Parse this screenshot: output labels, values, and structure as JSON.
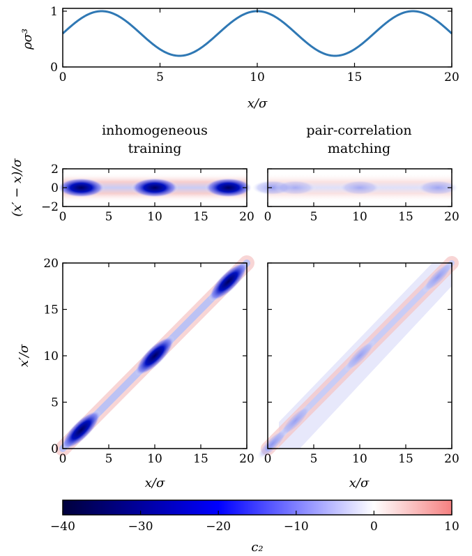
{
  "chart_data": [
    {
      "type": "line",
      "panel": "density",
      "series": [
        {
          "name": "",
          "color": "#2f78b4",
          "function": "0.6 + 0.4*sin(2*pi*x/8)"
        }
      ],
      "x": [
        0,
        2,
        4,
        6,
        8,
        10,
        12,
        14,
        16,
        18,
        20
      ],
      "y": [
        0.6,
        1.0,
        0.6,
        0.2,
        0.6,
        1.0,
        0.6,
        0.2,
        0.6,
        1.0,
        0.6
      ],
      "xlim": [
        0,
        20
      ],
      "ylim": [
        0,
        1.05
      ],
      "xticks": [
        "0",
        "5",
        "10",
        "15",
        "20"
      ],
      "yticks": [
        "0",
        "1"
      ],
      "xlabel": "x/σ",
      "ylabel": "ρσ³"
    },
    {
      "type": "heatmap",
      "panel": "strip-left",
      "title_line1": "inhomogeneous",
      "title_line2": "training",
      "xlim": [
        0,
        20
      ],
      "ylim": [
        -2,
        2
      ],
      "xticks": [
        "0",
        "5",
        "10",
        "15",
        "20"
      ],
      "yticks": [
        "2",
        "0",
        "−2"
      ],
      "ylabel": "(x′ − x)/σ",
      "blobs": [
        {
          "x": 2,
          "value": -40
        },
        {
          "x": 10,
          "value": -40
        },
        {
          "x": 18,
          "value": -40
        }
      ]
    },
    {
      "type": "heatmap",
      "panel": "strip-right",
      "title_line1": "pair-correlation",
      "title_line2": "matching",
      "xlim": [
        0,
        20
      ],
      "ylim": [
        -2,
        2
      ],
      "xticks": [
        "0",
        "5",
        "10",
        "15",
        "20"
      ],
      "blobs": [
        {
          "x": 0.5,
          "value": -28
        },
        {
          "x": 3,
          "value": -10
        },
        {
          "x": 10,
          "value": -12
        },
        {
          "x": 18.5,
          "value": -18
        }
      ]
    },
    {
      "type": "heatmap",
      "panel": "square-left",
      "xlim": [
        0,
        20
      ],
      "ylim": [
        0,
        20
      ],
      "xticks": [
        "0",
        "5",
        "10",
        "15",
        "20"
      ],
      "yticks": [
        "20",
        "15",
        "10",
        "5",
        "0"
      ],
      "xlabel": "x/σ",
      "ylabel": "x′/σ",
      "blobs": [
        {
          "x": 2,
          "value": -40
        },
        {
          "x": 10,
          "value": -40
        },
        {
          "x": 18,
          "value": -40
        }
      ]
    },
    {
      "type": "heatmap",
      "panel": "square-right",
      "xlim": [
        0,
        20
      ],
      "ylim": [
        0,
        20
      ],
      "xticks": [
        "0",
        "5",
        "10",
        "15",
        "20"
      ],
      "xlabel": "x/σ",
      "blobs": [
        {
          "x": 0.5,
          "value": -28
        },
        {
          "x": 3,
          "value": -14
        },
        {
          "x": 10,
          "value": -16
        },
        {
          "x": 18.5,
          "value": -22
        }
      ]
    },
    {
      "type": "colorbar",
      "range": [
        -40,
        10
      ],
      "ticks": [
        "−40",
        "−30",
        "−20",
        "−10",
        "0",
        "10"
      ],
      "tick_values": [
        -40,
        -30,
        -20,
        -10,
        0,
        10
      ],
      "colors": [
        "#00003c",
        "#0000ff",
        "#ffffff",
        "#f58080"
      ],
      "label": "c₂"
    }
  ]
}
